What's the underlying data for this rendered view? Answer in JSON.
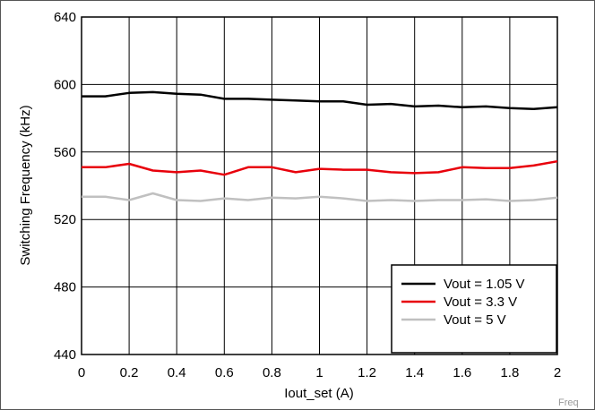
{
  "chart_data": {
    "type": "line",
    "xlabel": "Iout_set (A)",
    "ylabel": "Switching Frequency (kHz)",
    "xlim": [
      0,
      2
    ],
    "ylim": [
      440,
      640
    ],
    "x_ticks": [
      0,
      0.2,
      0.4,
      0.6,
      0.8,
      1,
      1.2,
      1.4,
      1.6,
      1.8,
      2
    ],
    "y_ticks": [
      440,
      480,
      520,
      560,
      600,
      640
    ],
    "grid": true,
    "legend_position": "bottom-right",
    "x": [
      0,
      0.1,
      0.2,
      0.3,
      0.4,
      0.5,
      0.6,
      0.7,
      0.8,
      0.9,
      1.0,
      1.1,
      1.2,
      1.3,
      1.4,
      1.5,
      1.6,
      1.7,
      1.8,
      1.9,
      2.0
    ],
    "series": [
      {
        "name": "Vout = 1.05 V",
        "color": "#000000",
        "values": [
          593,
          593,
          595,
          595.5,
          594.5,
          594,
          591.5,
          591.5,
          591,
          590.5,
          590,
          590,
          588,
          588.5,
          587,
          587.5,
          586.5,
          587,
          586,
          585.5,
          586.5
        ]
      },
      {
        "name": "Vout = 3.3 V",
        "color": "#e8000b",
        "values": [
          551,
          551,
          553,
          549,
          548,
          549,
          546.5,
          551,
          551,
          548,
          550,
          549.5,
          549.5,
          548,
          547.5,
          548,
          551,
          550.5,
          550.5,
          552,
          554.5
        ]
      },
      {
        "name": "Vout = 5 V",
        "color": "#c0c0c0",
        "values": [
          533.5,
          533.5,
          531.5,
          535.5,
          531.5,
          531,
          532.5,
          531.5,
          533,
          532.5,
          533.5,
          532.5,
          531,
          531.5,
          531,
          531.5,
          531.5,
          532,
          531,
          531.5,
          533
        ]
      }
    ]
  },
  "corner_label": "Freq"
}
